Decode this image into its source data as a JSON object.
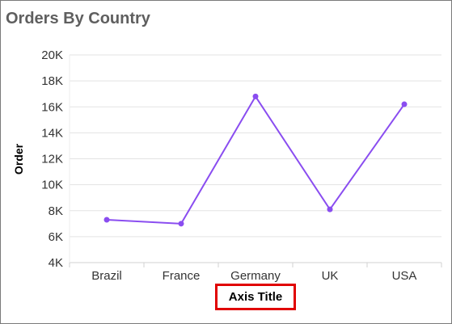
{
  "panel": {
    "title": "Orders By Country"
  },
  "chart_data": {
    "type": "line",
    "title": "Orders By Country",
    "xlabel": "Axis Title",
    "ylabel": "Order",
    "categories": [
      "Brazil",
      "France",
      "Germany",
      "UK",
      "USA"
    ],
    "series": [
      {
        "values": [
          7300,
          7000,
          16800,
          8100,
          16200
        ]
      }
    ],
    "ylim": [
      4000,
      20000
    ],
    "yticks": [
      4000,
      6000,
      8000,
      10000,
      12000,
      14000,
      16000,
      18000,
      20000
    ],
    "ytick_labels": [
      "4K",
      "6K",
      "8K",
      "10K",
      "12K",
      "14K",
      "16K",
      "18K",
      "20K"
    ],
    "grid": true,
    "legend": "none",
    "colors": {
      "line": "#8a4df0",
      "grid": "#e3e3e3",
      "xtitle_highlight": "#e00000"
    }
  }
}
